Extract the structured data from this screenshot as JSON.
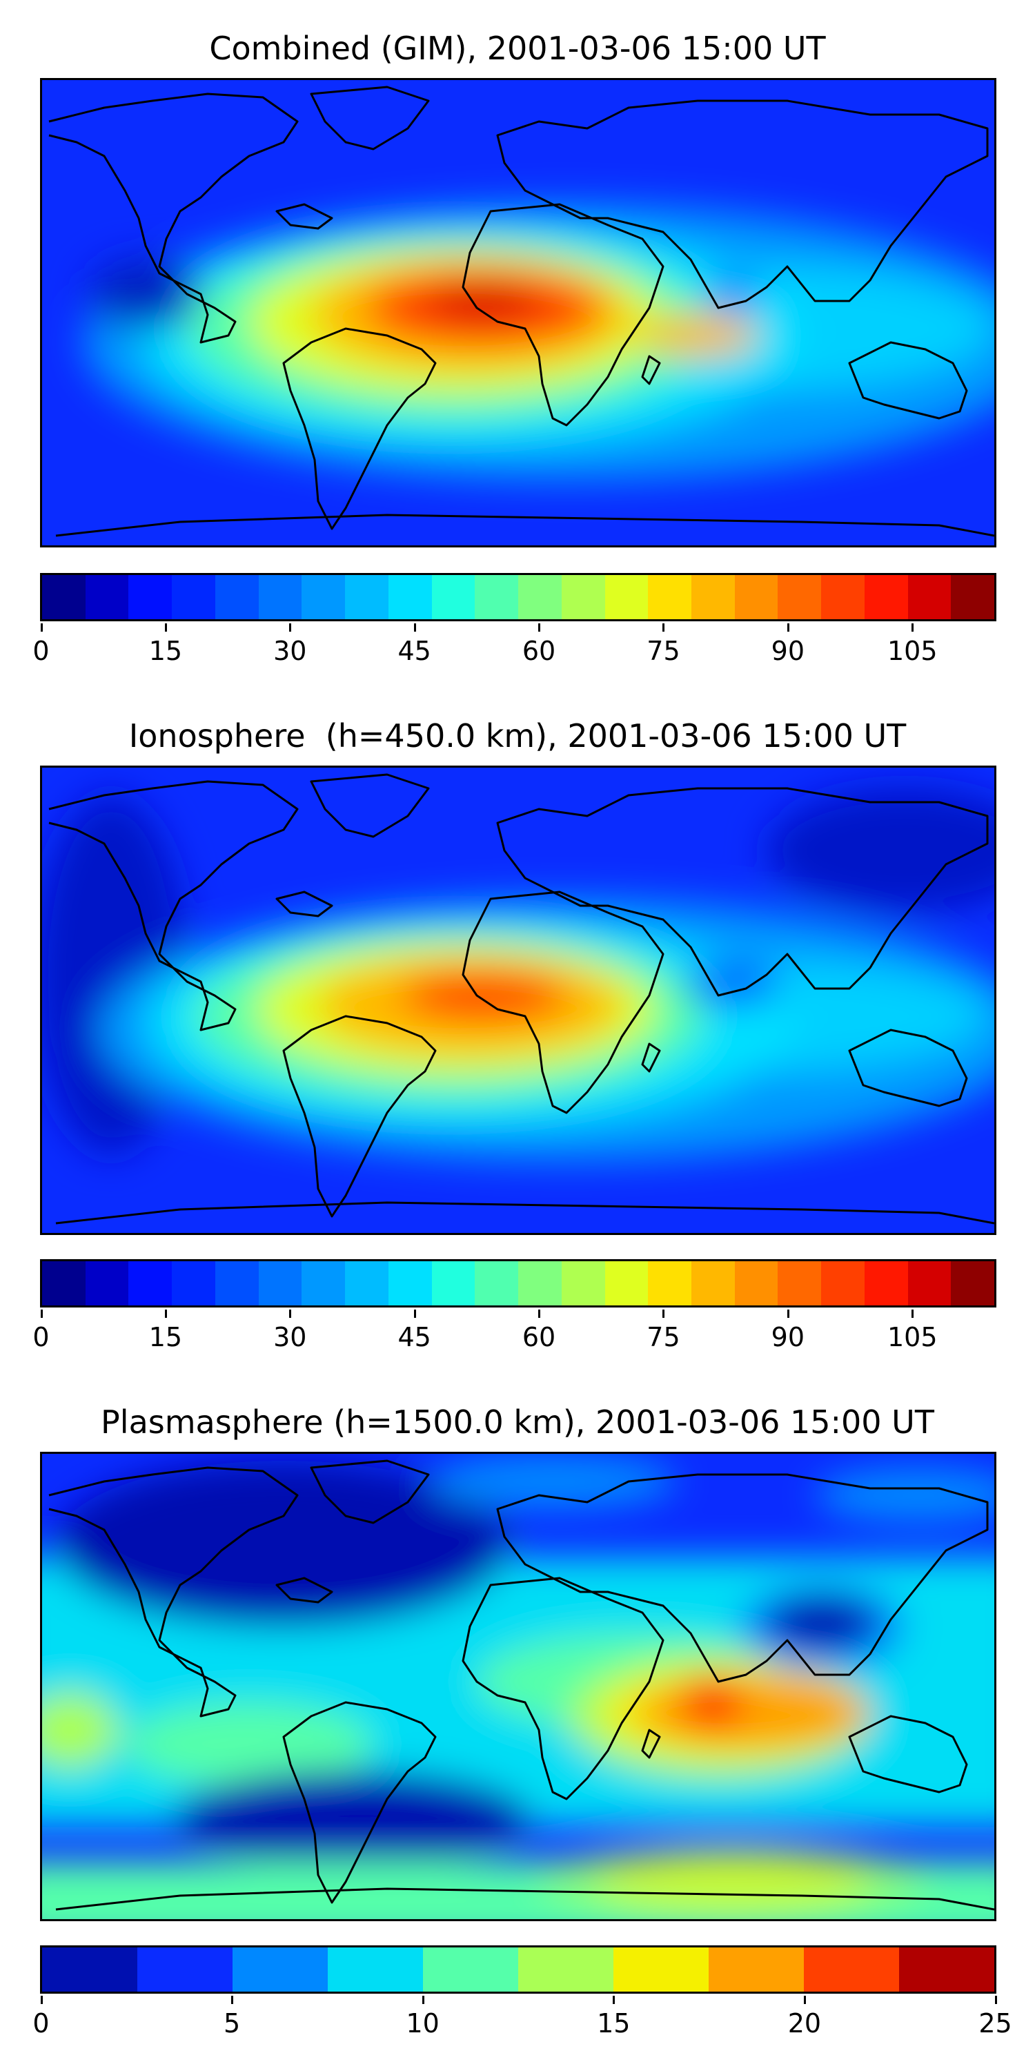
{
  "panels": [
    {
      "title": "Combined (GIM), 2001-03-06 15:00 UT",
      "colorbar": {
        "colors": [
          "#00008f",
          "#0000c8",
          "#0010ff",
          "#0028ff",
          "#0050ff",
          "#0074ff",
          "#0098ff",
          "#00bcff",
          "#00e0ff",
          "#20ffdf",
          "#50ffaf",
          "#80ff7f",
          "#afff50",
          "#dfff20",
          "#ffe000",
          "#ffb800",
          "#ff9000",
          "#ff6800",
          "#ff4000",
          "#ff1800",
          "#d40000",
          "#8f0000"
        ],
        "ticks": [
          0,
          15,
          30,
          45,
          60,
          75,
          90,
          105
        ],
        "range": [
          0,
          115
        ]
      }
    },
    {
      "title": "Ionosphere  (h=450.0 km), 2001-03-06 15:00 UT",
      "colorbar": {
        "colors": [
          "#00008f",
          "#0000c8",
          "#0010ff",
          "#0028ff",
          "#0050ff",
          "#0074ff",
          "#0098ff",
          "#00bcff",
          "#00e0ff",
          "#20ffdf",
          "#50ffaf",
          "#80ff7f",
          "#afff50",
          "#dfff20",
          "#ffe000",
          "#ffb800",
          "#ff9000",
          "#ff6800",
          "#ff4000",
          "#ff1800",
          "#d40000",
          "#8f0000"
        ],
        "ticks": [
          0,
          15,
          30,
          45,
          60,
          75,
          90,
          105
        ],
        "range": [
          0,
          115
        ]
      }
    },
    {
      "title": "Plasmasphere (h=1500.0 km), 2001-03-06 15:00 UT",
      "colorbar": {
        "colors": [
          "#0010b0",
          "#0a2cff",
          "#0088ff",
          "#00ddf5",
          "#55ffaa",
          "#aaff55",
          "#f5f000",
          "#ffa000",
          "#ff4000",
          "#b00000"
        ],
        "ticks": [
          0,
          5,
          10,
          15,
          20,
          25
        ],
        "range": [
          0,
          25
        ]
      }
    }
  ]
}
